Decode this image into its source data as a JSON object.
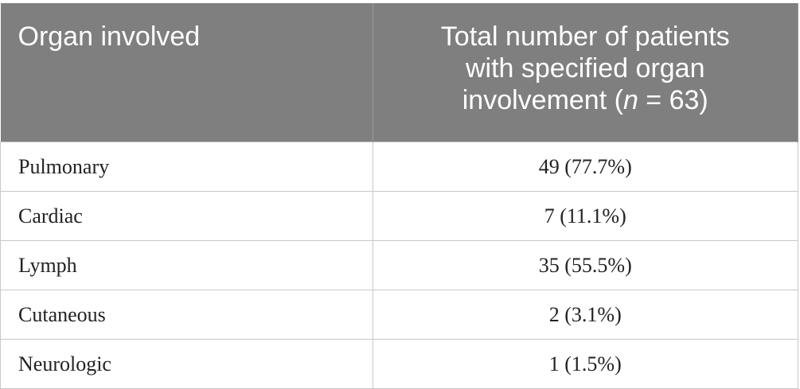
{
  "table": {
    "header": [
      "Organ involved",
      {
        "text": "Total number of patients with specified organ involvement (",
        "italic": "n",
        "rest": " = 63)"
      }
    ],
    "rows": [
      [
        "Pulmonary",
        "49 (77.7%)"
      ],
      [
        "Cardiac",
        "7 (11.1%)"
      ],
      [
        "Lymph",
        "35 (55.5%)"
      ],
      [
        "Cutaneous",
        "2 (3.1%)"
      ],
      [
        "Neurologic",
        "1 (1.5%)"
      ]
    ]
  }
}
